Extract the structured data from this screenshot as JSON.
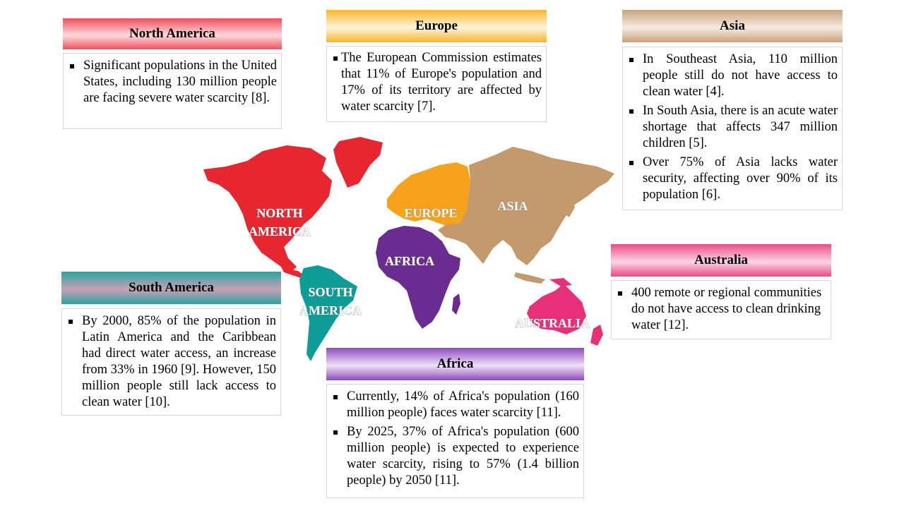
{
  "panels": {
    "north_america": {
      "title": "North America",
      "items": [
        "Significant populations in the United States, including 130 million people are facing severe water scarcity [8]."
      ]
    },
    "europe": {
      "title": "Europe",
      "items": [
        "The European Commission estimates that 11% of Europe's population and 17% of its territory are affected by water scarcity [7]."
      ]
    },
    "asia": {
      "title": "Asia",
      "items": [
        "In Southeast Asia, 110 million people still do not have access to clean water [4].",
        "In South Asia, there is an acute water shortage that affects 347 million children [5].",
        "Over 75% of Asia lacks water security, affecting over 90% of its population [6]."
      ]
    },
    "australia": {
      "title": "Australia",
      "items": [
        "400 remote or regional communities do not have access to clean drinking water [12]."
      ]
    },
    "south_america": {
      "title": "South America",
      "items": [
        "By 2000, 85% of the population in Latin America and the Caribbean had direct water access, an increase from 33% in 1960 [9]. However, 150 million people still lack access to clean water [10]."
      ]
    },
    "africa": {
      "title": "Africa",
      "items": [
        "Currently, 14% of Africa's population (160 million people) faces water scarcity [11].",
        "By 2025, 37% of Africa's population (600 million people) is expected to experience water scarcity, rising to 57% (1.4 billion people) by 2050 [11]."
      ]
    }
  },
  "map_labels": {
    "north_america": [
      "NORTH",
      "AMERICA"
    ],
    "europe": "EUROPE",
    "asia": "ASIA",
    "africa": "AFRICA",
    "south_america": [
      "SOUTH",
      "AMERICA"
    ],
    "australia": "AUSTRALIA"
  },
  "colors": {
    "north_america": "#e8262f",
    "europe": "#f7a21b",
    "asia": "#c49a6c",
    "africa": "#6a2c91",
    "south_america": "#0e9c96",
    "australia": "#e8307a"
  }
}
